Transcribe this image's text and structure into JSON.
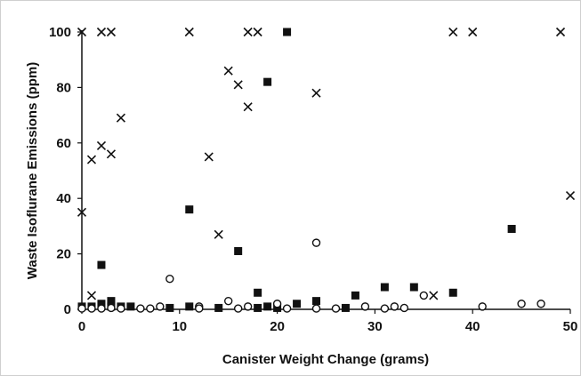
{
  "chart_data": {
    "type": "scatter",
    "title": "",
    "xlabel": "Canister Weight Change (grams)",
    "ylabel": "Waste Isoflurane Emissions (ppm)",
    "xlim": [
      0,
      50
    ],
    "ylim": [
      0,
      100
    ],
    "x_ticks": [
      "0",
      "10",
      "20",
      "30",
      "40",
      "50"
    ],
    "y_ticks": [
      "0",
      "20",
      "40",
      "60",
      "80",
      "100"
    ],
    "grid": false,
    "legend": "none",
    "colors": {
      "ink": "#111111"
    },
    "series": [
      {
        "marker": "cross",
        "points": [
          [
            0,
            100
          ],
          [
            2,
            100
          ],
          [
            3,
            100
          ],
          [
            11,
            100
          ],
          [
            17,
            100
          ],
          [
            18,
            100
          ],
          [
            38,
            100
          ],
          [
            40,
            100
          ],
          [
            49,
            100
          ],
          [
            0,
            35
          ],
          [
            1,
            54
          ],
          [
            2,
            59
          ],
          [
            3,
            56
          ],
          [
            4,
            69
          ],
          [
            1,
            5
          ],
          [
            13,
            55
          ],
          [
            14,
            27
          ],
          [
            15,
            86
          ],
          [
            16,
            81
          ],
          [
            17,
            73
          ],
          [
            24,
            78
          ],
          [
            36,
            5
          ],
          [
            50,
            41
          ]
        ]
      },
      {
        "marker": "filled-square",
        "points": [
          [
            0,
            1
          ],
          [
            1,
            1
          ],
          [
            2,
            16
          ],
          [
            2,
            2
          ],
          [
            3,
            3
          ],
          [
            3,
            1
          ],
          [
            4,
            1
          ],
          [
            5,
            1
          ],
          [
            9,
            0.5
          ],
          [
            11,
            36
          ],
          [
            11,
            1
          ],
          [
            14,
            0.5
          ],
          [
            16,
            21
          ],
          [
            18,
            6
          ],
          [
            18,
            0.5
          ],
          [
            19,
            82
          ],
          [
            19,
            1
          ],
          [
            20,
            0.5
          ],
          [
            21,
            100
          ],
          [
            22,
            2
          ],
          [
            24,
            3
          ],
          [
            27,
            0.5
          ],
          [
            28,
            5
          ],
          [
            31,
            8
          ],
          [
            34,
            8
          ],
          [
            38,
            6
          ],
          [
            44,
            29
          ]
        ]
      },
      {
        "marker": "open-circle",
        "points": [
          [
            0,
            0.3
          ],
          [
            1,
            0.3
          ],
          [
            2,
            0.3
          ],
          [
            3,
            0.5
          ],
          [
            4,
            0.3
          ],
          [
            6,
            0.3
          ],
          [
            7,
            0.3
          ],
          [
            8,
            1
          ],
          [
            9,
            11
          ],
          [
            12,
            1
          ],
          [
            12,
            0.3
          ],
          [
            15,
            3
          ],
          [
            16,
            0.3
          ],
          [
            17,
            1
          ],
          [
            20,
            2
          ],
          [
            21,
            0.3
          ],
          [
            24,
            24
          ],
          [
            24,
            0.3
          ],
          [
            26,
            0.3
          ],
          [
            29,
            1
          ],
          [
            31,
            0.3
          ],
          [
            32,
            1
          ],
          [
            33,
            0.5
          ],
          [
            35,
            5
          ],
          [
            41,
            1
          ],
          [
            45,
            2
          ],
          [
            47,
            2
          ]
        ]
      }
    ]
  }
}
